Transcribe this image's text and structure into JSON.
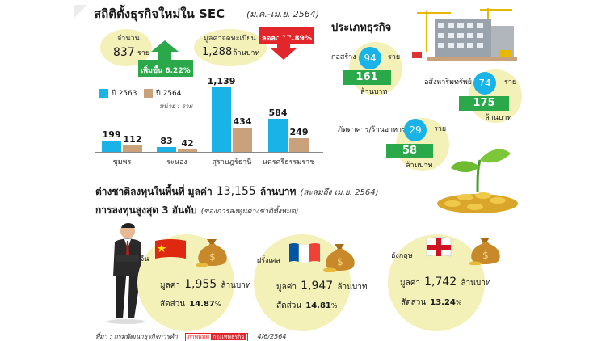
{
  "header": {
    "title": "สถิติตั้งธุรกิจใหม่ใน SEC",
    "period": "(ม.ค.-เม.ย. 2564)"
  },
  "count_stat": {
    "label": "จำนวน",
    "value": "837",
    "unit": "ราย",
    "change": "เพิ่มขึ้น 6.22%"
  },
  "capital_stat": {
    "label": "มูลค่าจดทะเบียน",
    "value": "1,288",
    "unit": "ล้านบาท",
    "change": "ลดลง 17.89%"
  },
  "legend": {
    "y2563": "ปี 2563",
    "y2564": "ปี 2564",
    "unit_note": "หน่วย : ราย"
  },
  "chart_data": {
    "type": "bar",
    "categories": [
      "ชุมพร",
      "ระนอง",
      "สุราษฎร์ธานี",
      "นครศรีธรรมราช"
    ],
    "series": [
      {
        "name": "ปี 2563",
        "values": [
          199,
          83,
          1139,
          584
        ]
      },
      {
        "name": "ปี 2564",
        "values": [
          112,
          42,
          434,
          249
        ]
      }
    ],
    "value_labels": [
      [
        "199",
        "83",
        "1,139",
        "584"
      ],
      [
        "112",
        "42",
        "434",
        "249"
      ]
    ],
    "colors": [
      "#1ab3e8",
      "#c9a27c"
    ],
    "ylabel": "หน่วย : ราย"
  },
  "business_types": {
    "title": "ประเภทธุรกิจ",
    "items": [
      {
        "name": "ก่อสร้าง",
        "count": "94",
        "count_unit": "ราย",
        "capital": "161",
        "capital_unit": "ล้านบาท"
      },
      {
        "name": "อสังหาริมทรัพย์",
        "count": "74",
        "count_unit": "ราย",
        "capital": "175",
        "capital_unit": "ล้านบาท"
      },
      {
        "name": "ภัตตาคาร/ร้านอาหาร",
        "count": "29",
        "count_unit": "ราย",
        "capital": "58",
        "capital_unit": "ล้านบาท"
      }
    ]
  },
  "foreign": {
    "title_prefix": "ต่างชาติลงทุนในพื้นที่ มูลค่า",
    "title_value": "13,155",
    "title_unit": "ล้านบาท",
    "title_note": "(สะสมถึง เม.ย. 2564)",
    "top_title": "การลงทุนสูงสุด 3 อันดับ",
    "top_note": "(ของการลงทุนต่างชาติทั้งหมด)",
    "value_label": "มูลค่า",
    "value_unit": "ล้านบาท",
    "share_label": "สัดส่วน",
    "countries": [
      {
        "name": "จีน",
        "value": "1,955",
        "share": "14.87",
        "pct": "%",
        "flag": "china-flag"
      },
      {
        "name": "ฝรั่งเศส",
        "value": "1,947",
        "share": "14.81",
        "pct": "%",
        "flag": "france-flag"
      },
      {
        "name": "อังกฤษ",
        "value": "1,742",
        "share": "13.24",
        "pct": "%",
        "flag": "england-flag"
      }
    ]
  },
  "footer": {
    "source": "ที่มา : กรมพัฒนาธุรกิจการค้า",
    "brand_a": "ภาพพิมพ์",
    "brand_b": "กรุงเทพธุรกิจ",
    "date": "4/6/2564"
  },
  "colors": {
    "accent_blue": "#1ab3e8",
    "accent_tan": "#c9a27c",
    "green": "#2aa84a",
    "red": "#e3262b",
    "pale_yellow": "#f3f0b8"
  }
}
